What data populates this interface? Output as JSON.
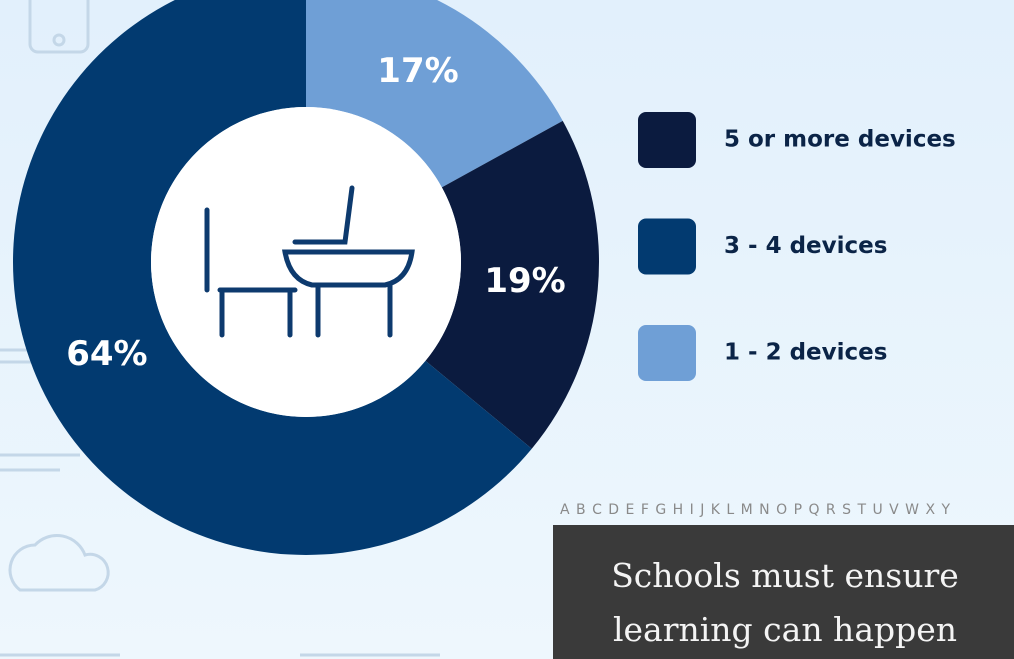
{
  "chart_data": {
    "type": "donut",
    "categories": [
      "5 or more devices",
      "3 - 4 devices",
      "1 - 2 devices"
    ],
    "values": [
      19,
      64,
      17
    ],
    "value_labels": [
      "19%",
      "64%",
      "17%"
    ],
    "colors": [
      "#0b1b3f",
      "#023a70",
      "#6f9fd6"
    ]
  },
  "banner": {
    "alphabet": "A B C D E F G H I J K L M N O P Q R S T U V W X Y",
    "lines": [
      "Schools must ensure",
      "learning can happen"
    ]
  }
}
